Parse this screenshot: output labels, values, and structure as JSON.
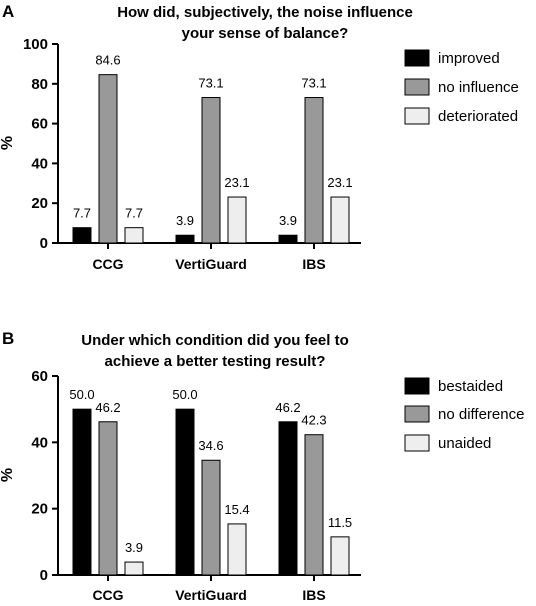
{
  "chart_data": [
    {
      "panel": "A",
      "type": "bar",
      "title": [
        "How did, subjectively, the noise influence",
        "your sense of balance?"
      ],
      "ylabel": "%",
      "ylim": [
        0,
        100
      ],
      "yticks": [
        0,
        20,
        40,
        60,
        80,
        100
      ],
      "categories": [
        "CCG",
        "VertiGuard",
        "IBS"
      ],
      "series": [
        {
          "name": "improved",
          "color": "#000000",
          "values": [
            7.7,
            3.9,
            3.9
          ],
          "labels": [
            "7.7",
            "3.9",
            "3.9"
          ]
        },
        {
          "name": "no influence",
          "color": "#999999",
          "values": [
            84.6,
            73.1,
            73.1
          ],
          "labels": [
            "84.6",
            "73.1",
            "73.1"
          ]
        },
        {
          "name": "deteriorated",
          "color": "#eeeeee",
          "values": [
            7.7,
            23.1,
            23.1
          ],
          "labels": [
            "7.7",
            "23.1",
            "23.1"
          ]
        }
      ],
      "legend_position": "right"
    },
    {
      "panel": "B",
      "type": "bar",
      "title": [
        "Under which condition did you feel to",
        "achieve a better testing result?"
      ],
      "ylabel": "%",
      "ylim": [
        0,
        60
      ],
      "yticks": [
        0,
        20,
        40,
        60
      ],
      "categories": [
        "CCG",
        "VertiGuard",
        "IBS"
      ],
      "series": [
        {
          "name": "bestaided",
          "color": "#000000",
          "values": [
            50.0,
            50.0,
            46.2
          ],
          "labels": [
            "50.0",
            "50.0",
            "46.2"
          ]
        },
        {
          "name": "no difference",
          "color": "#999999",
          "values": [
            46.2,
            34.6,
            42.3
          ],
          "labels": [
            "46.2",
            "34.6",
            "42.3"
          ]
        },
        {
          "name": "unaided",
          "color": "#eeeeee",
          "values": [
            3.9,
            15.4,
            11.5
          ],
          "labels": [
            "3.9",
            "15.4",
            "11.5"
          ]
        }
      ],
      "legend_position": "right"
    }
  ]
}
